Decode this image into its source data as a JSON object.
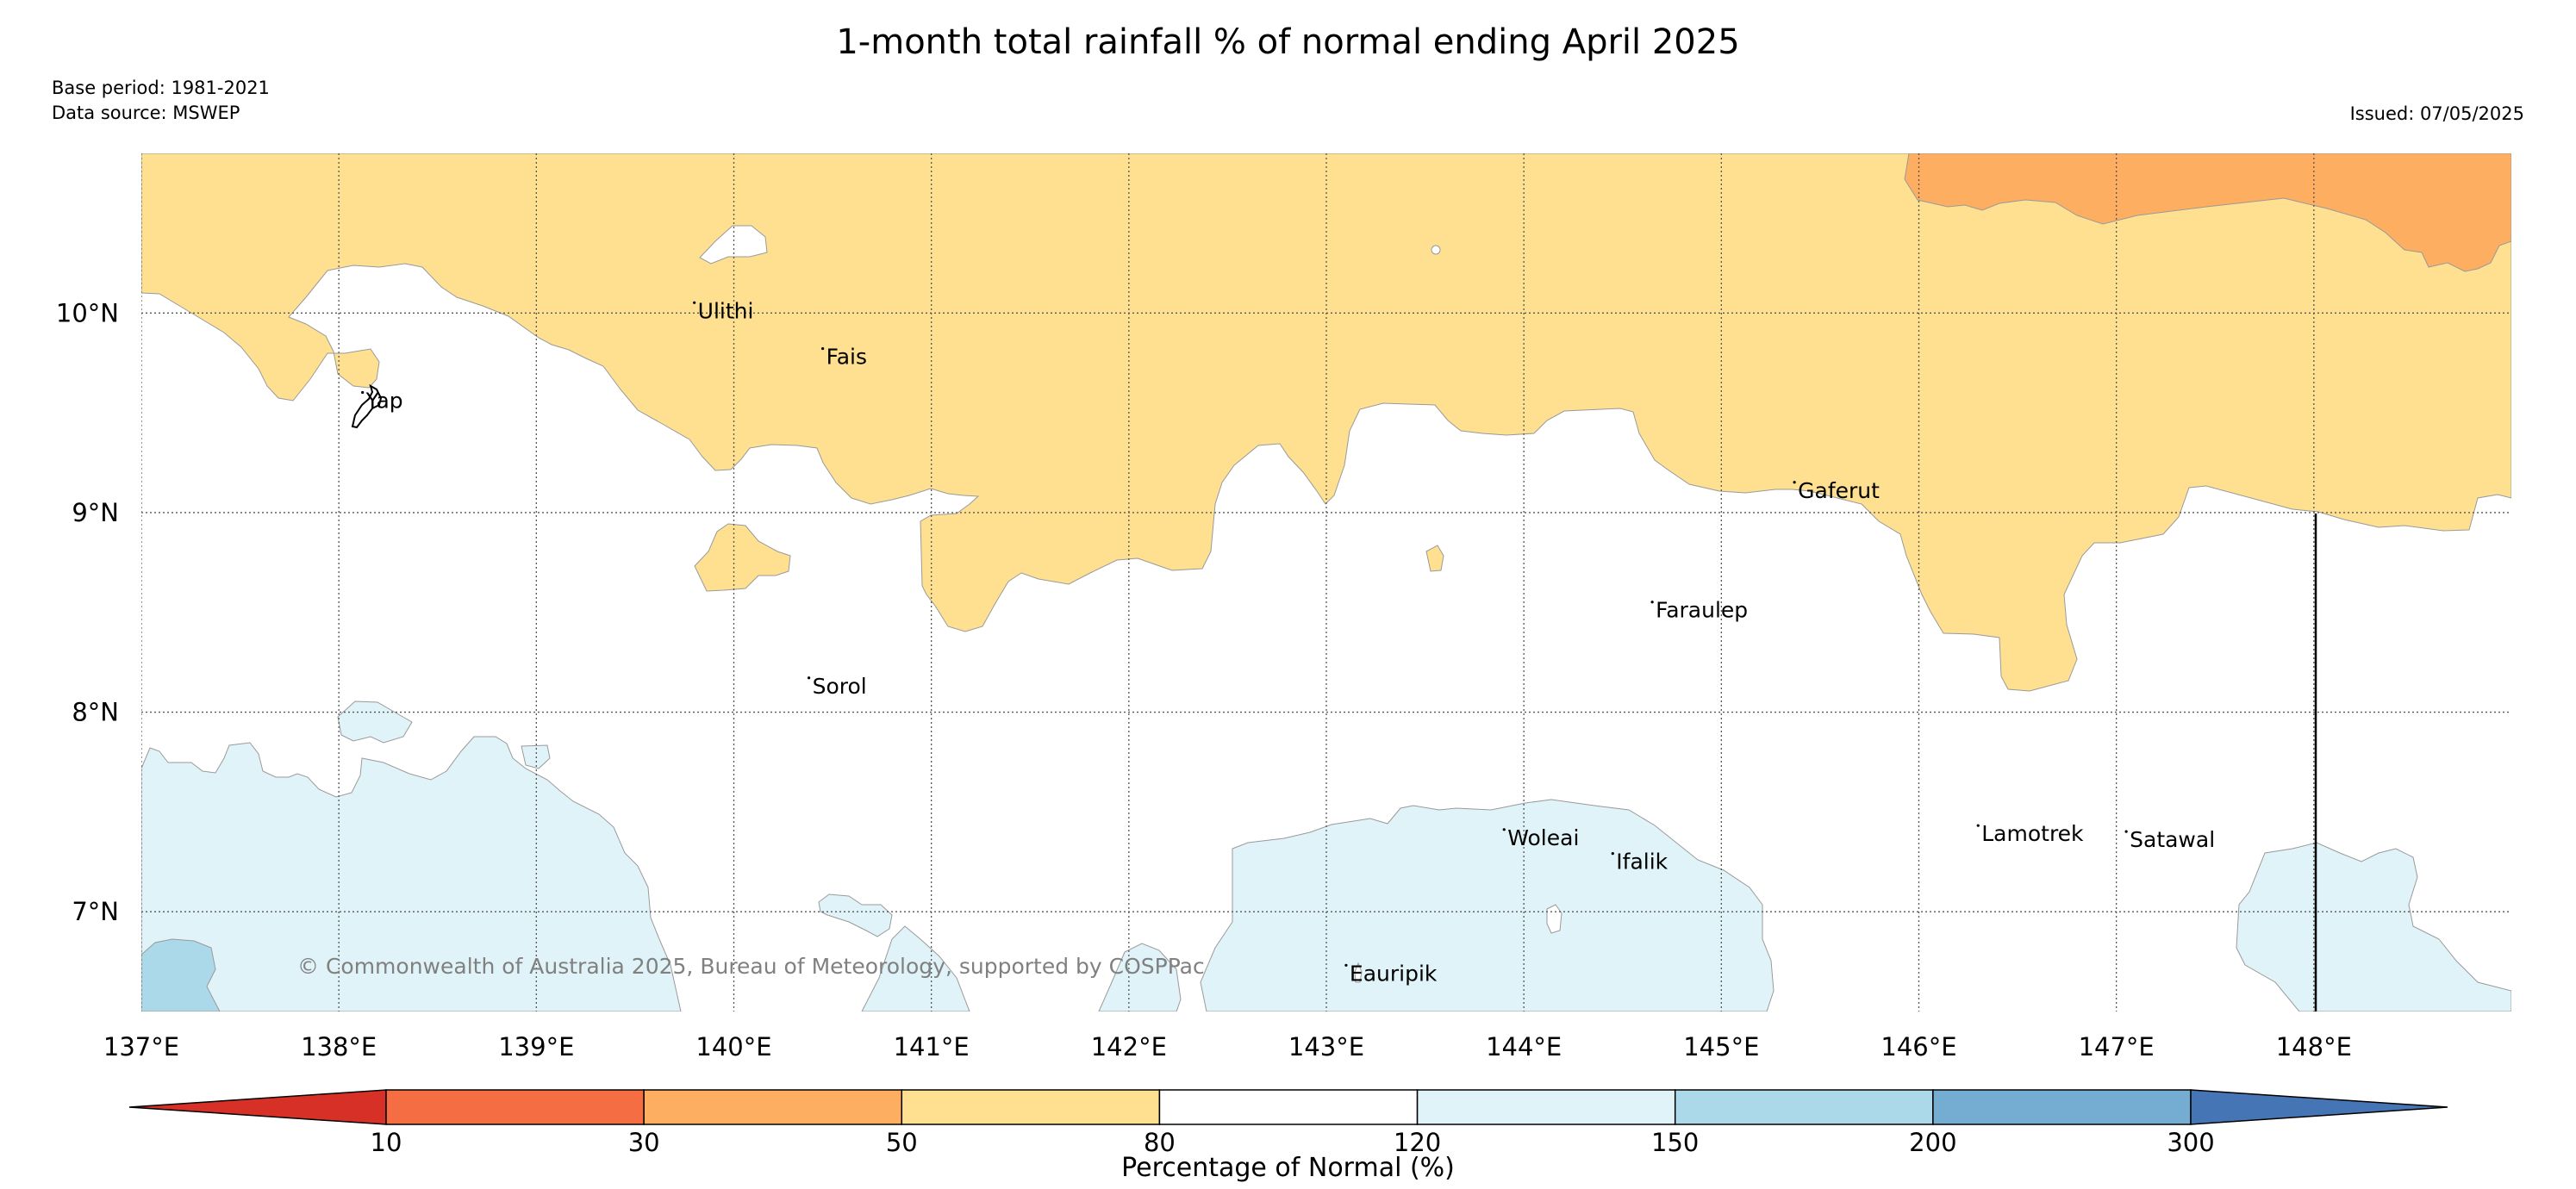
{
  "title": "1-month total rainfall % of normal ending April 2025",
  "meta": {
    "base_period": "Base period: 1981-2021",
    "data_source": "Data source: MSWEP",
    "issued": "Issued: 07/05/2025"
  },
  "copyright": "© Commonwealth of Australia 2025, Bureau of Meteorology, supported by COSPPac",
  "map": {
    "lon_range": [
      137,
      149
    ],
    "lat_range": [
      6.5,
      10.8
    ],
    "lon_ticks": [
      {
        "value": 137,
        "label": "137°E"
      },
      {
        "value": 138,
        "label": "138°E"
      },
      {
        "value": 139,
        "label": "139°E"
      },
      {
        "value": 140,
        "label": "140°E"
      },
      {
        "value": 141,
        "label": "141°E"
      },
      {
        "value": 142,
        "label": "142°E"
      },
      {
        "value": 143,
        "label": "143°E"
      },
      {
        "value": 144,
        "label": "144°E"
      },
      {
        "value": 145,
        "label": "145°E"
      },
      {
        "value": 146,
        "label": "146°E"
      },
      {
        "value": 147,
        "label": "147°E"
      },
      {
        "value": 148,
        "label": "148°E"
      }
    ],
    "lat_ticks": [
      {
        "value": 7,
        "label": "7°N"
      },
      {
        "value": 8,
        "label": "8°N"
      },
      {
        "value": 9,
        "label": "9°N"
      },
      {
        "value": 10,
        "label": "10°N"
      }
    ],
    "gridlines": "dotted",
    "places": [
      {
        "name": "Ulithi",
        "lon": 139.8,
        "lat": 10.0
      },
      {
        "name": "Fais",
        "lon": 140.45,
        "lat": 9.77
      },
      {
        "name": "Yap",
        "lon": 138.12,
        "lat": 9.55
      },
      {
        "name": "Gaferut",
        "lon": 145.37,
        "lat": 9.1
      },
      {
        "name": "Faraulep",
        "lon": 144.65,
        "lat": 8.5
      },
      {
        "name": "Sorol",
        "lon": 140.38,
        "lat": 8.12
      },
      {
        "name": "Woleai",
        "lon": 143.9,
        "lat": 7.36
      },
      {
        "name": "Ifalik",
        "lon": 144.45,
        "lat": 7.24
      },
      {
        "name": "Lamotrek",
        "lon": 146.3,
        "lat": 7.38
      },
      {
        "name": "Satawal",
        "lon": 147.05,
        "lat": 7.35
      },
      {
        "name": "Eauripik",
        "lon": 143.1,
        "lat": 6.68
      }
    ],
    "category_colors": {
      "30-50": "#fdae61",
      "50-80": "#fee090",
      "80-120": "#ffffff",
      "120-150": "#e0f3f8",
      "150-200": "#abd9e9"
    }
  },
  "colorbar": {
    "title": "Percentage of Normal (%)",
    "boundaries": [
      "10",
      "30",
      "50",
      "80",
      "120",
      "150",
      "200",
      "300"
    ],
    "colors": [
      "#d73027",
      "#f46d43",
      "#fdae61",
      "#fee090",
      "#ffffff",
      "#e0f3f8",
      "#abd9e9",
      "#74add1",
      "#4575b4"
    ]
  }
}
